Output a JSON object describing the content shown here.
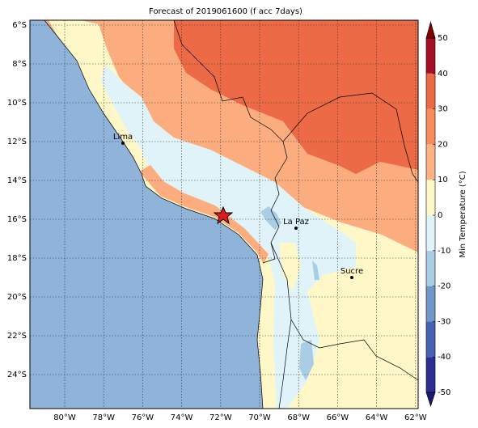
{
  "title": "Forecast of 2019061600 (f acc 7days)",
  "map": {
    "xticks": [
      "80°W",
      "78°W",
      "76°W",
      "74°W",
      "72°W",
      "70°W",
      "68°W",
      "66°W",
      "64°W",
      "62°W"
    ],
    "yticks": [
      "6°S",
      "8°S",
      "10°S",
      "12°S",
      "14°S",
      "16°S",
      "18°S",
      "20°S",
      "22°S",
      "24°S"
    ],
    "cities": [
      "Lima",
      "La Paz",
      "Sucre"
    ]
  },
  "colorbar": {
    "label": "Min Temperature (°C)",
    "ticks": [
      -50,
      -40,
      -30,
      -20,
      -10,
      0,
      10,
      20,
      30,
      40,
      50
    ],
    "colors": [
      "#2c2c93",
      "#4663b3",
      "#6f98c9",
      "#a9cde4",
      "#e0f3f8",
      "#fef8c8",
      "#fdb383",
      "#f88d59",
      "#ec6a45",
      "#a50f26"
    ],
    "extend_colors": [
      "#1a1a6e",
      "#7f0000"
    ]
  }
}
